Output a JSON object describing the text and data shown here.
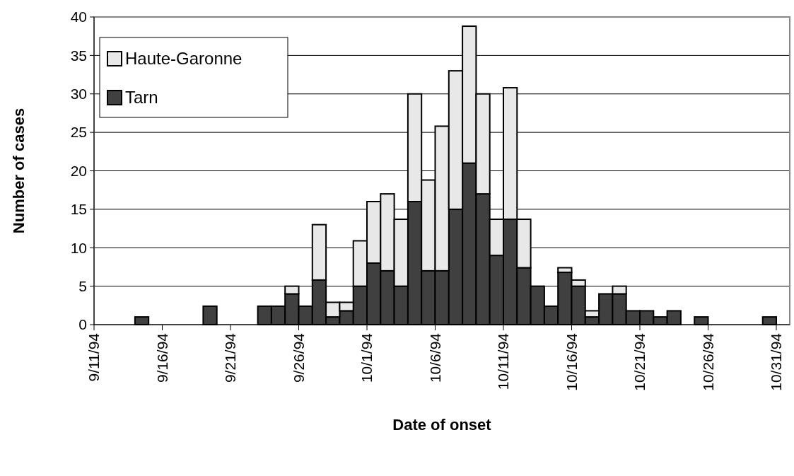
{
  "chart_data": {
    "type": "bar",
    "stacked": true,
    "xlabel": "Date of onset",
    "ylabel": "Number of cases",
    "x": [
      "1994-09-14T12:00",
      "1994-09-19T12:00",
      "1994-09-23T12:00",
      "1994-09-24T12:00",
      "1994-09-25T12:00",
      "1994-09-26T12:00",
      "1994-09-27T12:00",
      "1994-09-28T12:00",
      "1994-09-29T12:00",
      "1994-09-30T12:00",
      "1994-10-01T12:00",
      "1994-10-02T12:00",
      "1994-10-03T12:00",
      "1994-10-04T12:00",
      "1994-10-05T12:00",
      "1994-10-06T12:00",
      "1994-10-07T12:00",
      "1994-10-08T12:00",
      "1994-10-09T12:00",
      "1994-10-10T12:00",
      "1994-10-11T12:00",
      "1994-10-12T12:00",
      "1994-10-13T12:00",
      "1994-10-14T12:00",
      "1994-10-15T12:00",
      "1994-10-16T12:00",
      "1994-10-17T12:00",
      "1994-10-18T12:00",
      "1994-10-19T12:00",
      "1994-10-20T12:00",
      "1994-10-21T12:00",
      "1994-10-22T12:00",
      "1994-10-23T12:00",
      "1994-10-25T12:00",
      "1994-10-30T12:00"
    ],
    "series": [
      {
        "name": "Tarn",
        "color": "#404040",
        "values": [
          1,
          2.4,
          2.4,
          2.4,
          4,
          2.4,
          5.8,
          1,
          1.8,
          5,
          8,
          7,
          5,
          16,
          7,
          7,
          15,
          21,
          17,
          9,
          13.7,
          7.4,
          5,
          2.4,
          6.8,
          5,
          1,
          4,
          4,
          1.8,
          1.8,
          1,
          1.8,
          1,
          1
        ]
      },
      {
        "name": "Haute-Garonne",
        "color": "#e8e8e8",
        "values": [
          0,
          0,
          0,
          0,
          1,
          0,
          7.2,
          1.9,
          1.1,
          5.9,
          8,
          10,
          8.7,
          14,
          11.8,
          18.8,
          18,
          17.8,
          13,
          4.7,
          17.1,
          6.3,
          0,
          0,
          0.6,
          0.8,
          0.8,
          0,
          1,
          0,
          0,
          0,
          0,
          0,
          0
        ]
      }
    ],
    "xlim": [
      "1994-09-11",
      "1994-10-31"
    ],
    "xticks": [
      {
        "value": "1994-09-11",
        "label": "9/11/94"
      },
      {
        "value": "1994-09-16",
        "label": "9/16/94"
      },
      {
        "value": "1994-09-21",
        "label": "9/21/94"
      },
      {
        "value": "1994-09-26",
        "label": "9/26/94"
      },
      {
        "value": "1994-10-01",
        "label": "10/1/94"
      },
      {
        "value": "1994-10-06",
        "label": "10/6/94"
      },
      {
        "value": "1994-10-11",
        "label": "10/11/94"
      },
      {
        "value": "1994-10-16",
        "label": "10/16/94"
      },
      {
        "value": "1994-10-21",
        "label": "10/21/94"
      },
      {
        "value": "1994-10-26",
        "label": "10/26/94"
      },
      {
        "value": "1994-10-31",
        "label": "10/31/94"
      }
    ],
    "ylim": [
      0,
      40
    ],
    "yticks": [
      0,
      5,
      10,
      15,
      20,
      25,
      30,
      35,
      40
    ],
    "grid": "y",
    "legend": "top left"
  }
}
